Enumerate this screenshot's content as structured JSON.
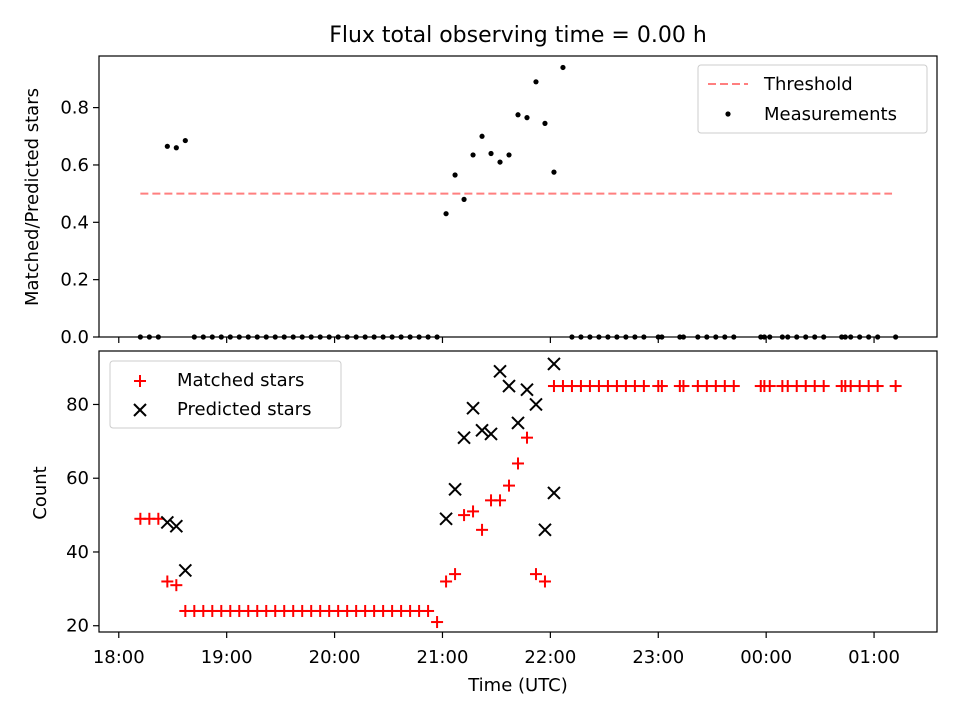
{
  "title": "Flux total observing time = 0.00 h",
  "xlabel": "Time (UTC)",
  "xticks": [
    "18:00",
    "19:00",
    "20:00",
    "21:00",
    "22:00",
    "23:00",
    "00:00",
    "01:00"
  ],
  "colors": {
    "threshold": "#ff7f7f",
    "measurements": "#000000",
    "matched": "#ff0000",
    "predicted": "#000000"
  },
  "chart_data": [
    {
      "type": "scatter",
      "title": "Flux total observing time = 0.00 h",
      "xlabel": "",
      "ylabel": "Matched/Predicted stars",
      "xlim": [
        "17:49",
        "25:35"
      ],
      "ylim": [
        0,
        0.98
      ],
      "yticks": [
        "0.0",
        "0.2",
        "0.4",
        "0.6",
        "0.8"
      ],
      "ytick_values": [
        0,
        0.2,
        0.4,
        0.6,
        0.8
      ],
      "grid": false,
      "legend": "top-right",
      "threshold": {
        "name": "Threshold",
        "y": 0.5,
        "x_range": [
          "18:12",
          "25:10"
        ],
        "style": "dashed"
      },
      "series": [
        {
          "name": "Measurements",
          "x": [
            "18:12",
            "18:17",
            "18:22",
            "18:27",
            "18:32",
            "18:37",
            "18:42",
            "18:47",
            "18:52",
            "18:57",
            "19:02",
            "19:07",
            "19:12",
            "19:17",
            "19:22",
            "19:27",
            "19:32",
            "19:37",
            "19:42",
            "19:47",
            "19:52",
            "19:57",
            "20:02",
            "20:07",
            "20:12",
            "20:17",
            "20:22",
            "20:27",
            "20:32",
            "20:37",
            "20:42",
            "20:47",
            "20:52",
            "20:57",
            "21:02",
            "21:07",
            "21:12",
            "21:17",
            "21:22",
            "21:27",
            "21:32",
            "21:37",
            "21:42",
            "21:47",
            "21:52",
            "21:57",
            "22:02",
            "22:07",
            "22:12",
            "22:17",
            "22:22",
            "22:27",
            "22:32",
            "22:37",
            "22:42",
            "22:47",
            "22:52",
            "23:00",
            "23:02",
            "23:12",
            "23:14",
            "23:22",
            "23:27",
            "23:32",
            "23:37",
            "23:42",
            "23:57",
            "23:59",
            "24:02",
            "24:09",
            "24:12",
            "24:17",
            "24:22",
            "24:27",
            "24:32",
            "24:42",
            "24:44",
            "24:47",
            "24:52",
            "24:57",
            "25:02",
            "25:12"
          ],
          "values": [
            0,
            0,
            0,
            0.665,
            0.66,
            0.685,
            0,
            0,
            0,
            0,
            0,
            0,
            0,
            0,
            0,
            0,
            0,
            0,
            0,
            0,
            0,
            0,
            0,
            0,
            0,
            0,
            0,
            0,
            0,
            0,
            0,
            0,
            0,
            0,
            0.43,
            0.565,
            0.48,
            0.635,
            0.7,
            0.64,
            0.61,
            0.635,
            0.775,
            0.765,
            0.89,
            0.745,
            0.575,
            0.94,
            0,
            0,
            0,
            0,
            0,
            0,
            0,
            0,
            0,
            0,
            0,
            0,
            0,
            0,
            0,
            0,
            0,
            0,
            0,
            0,
            0,
            0,
            0,
            0,
            0,
            0,
            0,
            0,
            0,
            0,
            0,
            0,
            0,
            0
          ]
        }
      ]
    },
    {
      "type": "scatter",
      "title": "",
      "xlabel": "Time (UTC)",
      "ylabel": "Count",
      "xlim": [
        "17:49",
        "25:35"
      ],
      "ylim": [
        18.3,
        94.5
      ],
      "yticks": [
        "20",
        "40",
        "60",
        "80"
      ],
      "ytick_values": [
        20,
        40,
        60,
        80
      ],
      "grid": false,
      "legend": "top-left",
      "series": [
        {
          "name": "Matched stars",
          "marker": "+",
          "x": [
            "18:12",
            "18:17",
            "18:22",
            "18:27",
            "18:32",
            "18:37",
            "18:42",
            "18:47",
            "18:52",
            "18:57",
            "19:02",
            "19:07",
            "19:12",
            "19:17",
            "19:22",
            "19:27",
            "19:32",
            "19:37",
            "19:42",
            "19:47",
            "19:52",
            "19:57",
            "20:02",
            "20:07",
            "20:12",
            "20:17",
            "20:22",
            "20:27",
            "20:32",
            "20:37",
            "20:42",
            "20:47",
            "20:52",
            "20:57",
            "21:02",
            "21:07",
            "21:12",
            "21:17",
            "21:22",
            "21:27",
            "21:32",
            "21:37",
            "21:42",
            "21:47",
            "21:52",
            "21:57",
            "22:02",
            "22:07",
            "22:12",
            "22:17",
            "22:22",
            "22:27",
            "22:32",
            "22:37",
            "22:42",
            "22:47",
            "22:52",
            "23:00",
            "23:02",
            "23:12",
            "23:14",
            "23:22",
            "23:27",
            "23:32",
            "23:37",
            "23:42",
            "23:57",
            "23:59",
            "24:02",
            "24:09",
            "24:12",
            "24:17",
            "24:22",
            "24:27",
            "24:32",
            "24:42",
            "24:44",
            "24:47",
            "24:52",
            "24:57",
            "25:02",
            "25:12"
          ],
          "values": [
            49,
            49,
            49,
            32,
            31,
            24,
            24,
            24,
            24,
            24,
            24,
            24,
            24,
            24,
            24,
            24,
            24,
            24,
            24,
            24,
            24,
            24,
            24,
            24,
            24,
            24,
            24,
            24,
            24,
            24,
            24,
            24,
            24,
            21,
            32,
            34,
            50,
            51,
            46,
            54,
            54,
            58,
            64,
            71,
            34,
            32,
            85,
            85,
            85,
            85,
            85,
            85,
            85,
            85,
            85,
            85,
            85,
            85,
            85,
            85,
            85,
            85,
            85,
            85,
            85,
            85,
            85,
            85,
            85,
            85,
            85,
            85,
            85,
            85,
            85,
            85,
            85,
            85,
            85,
            85,
            85,
            85
          ]
        },
        {
          "name": "Predicted stars",
          "marker": "x",
          "x": [
            "18:27",
            "18:32",
            "18:37",
            "21:02",
            "21:07",
            "21:12",
            "21:17",
            "21:22",
            "21:27",
            "21:32",
            "21:37",
            "21:42",
            "21:47",
            "21:52",
            "21:57",
            "22:02"
          ],
          "values": [
            48,
            47,
            35,
            49,
            57,
            71,
            79,
            73,
            72,
            89,
            85,
            75,
            84,
            80,
            46,
            56
          ]
        }
      ],
      "extra_predicted": {
        "x": "22:02",
        "y": 91
      }
    }
  ]
}
